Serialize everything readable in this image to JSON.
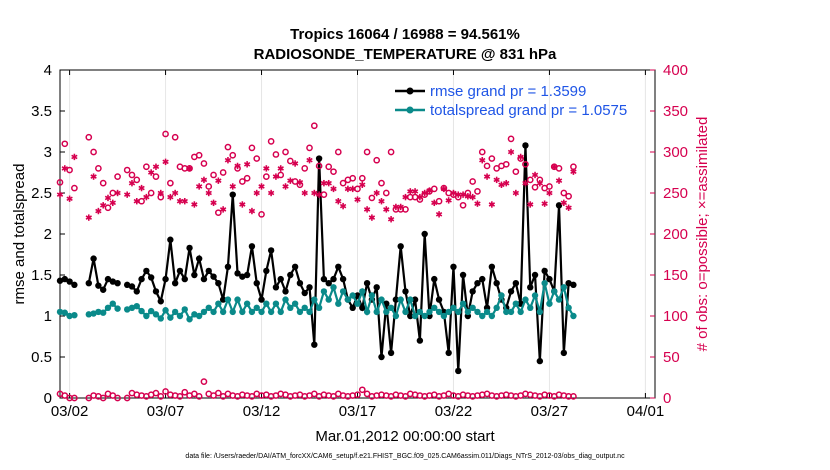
{
  "chart_data": {
    "type": "line",
    "title_line1": "Tropics 16064 / 16988 = 94.561%",
    "title_line2": "RADIOSONDE_TEMPERATURE @ 831 hPa",
    "xlabel": "Mar.01,2012 00:00:00 start",
    "ylabel": "rmse and totalspread",
    "ylabel_right": "# of obs: o=possible; ×=assimilated",
    "footer": "data file: /Users/raeder/DAI/ATM_forcXX/CAM6_setup/f.e21.FHIST_BGC.f09_025.CAM6assim.011/Diags_NTrS_2012-03/obs_diag_output.nc",
    "xlim": [
      1.5,
      32.5
    ],
    "ylim": [
      0,
      4
    ],
    "ylim_right": [
      0,
      400
    ],
    "x_ticks": [
      2,
      7,
      12,
      17,
      22,
      27,
      32
    ],
    "x_tick_labels": [
      "03/02",
      "03/07",
      "03/12",
      "03/17",
      "03/22",
      "03/27",
      "04/01"
    ],
    "y_tick_labels": [
      "0",
      "0.5",
      "1",
      "1.5",
      "2",
      "2.5",
      "3",
      "3.5",
      "4"
    ],
    "y_tick_values": [
      0,
      0.5,
      1,
      1.5,
      2,
      2.5,
      3,
      3.5,
      4
    ],
    "y_right_tick_labels": [
      "0",
      "50",
      "100",
      "150",
      "200",
      "250",
      "300",
      "350",
      "400"
    ],
    "y_right_tick_values": [
      0,
      50,
      100,
      150,
      200,
      250,
      300,
      350,
      400
    ],
    "x_start": 1.5,
    "x_step": 0.25,
    "series": [
      {
        "name": "rmse",
        "legend": "rmse grand pr = 1.3599",
        "color": "#000000",
        "axis": "left",
        "values": [
          1.43,
          1.45,
          1.42,
          1.38,
          null,
          null,
          1.4,
          1.7,
          1.37,
          1.32,
          1.45,
          1.42,
          1.4,
          null,
          1.38,
          1.36,
          1.3,
          1.45,
          1.55,
          1.47,
          1.3,
          1.18,
          1.45,
          1.93,
          1.4,
          1.55,
          1.45,
          1.83,
          1.5,
          1.7,
          1.45,
          1.55,
          1.48,
          1.4,
          1.2,
          1.6,
          2.48,
          1.52,
          1.48,
          1.5,
          1.85,
          1.4,
          1.2,
          1.55,
          1.8,
          1.35,
          1.45,
          1.3,
          1.5,
          1.6,
          1.4,
          1.28,
          1.35,
          0.65,
          2.92,
          1.45,
          1.4,
          1.45,
          1.6,
          1.45,
          1.2,
          1.1,
          1.25,
          1.1,
          1.4,
          1.2,
          1.35,
          0.5,
          1.15,
          0.55,
          1.2,
          1.85,
          1.3,
          1.0,
          1.2,
          0.7,
          2.0,
          1.0,
          1.45,
          1.2,
          1.05,
          0.55,
          1.6,
          0.33,
          1.5,
          1.0,
          1.3,
          1.4,
          1.45,
          1.1,
          1.6,
          1.4,
          1.2,
          1.1,
          1.3,
          1.4,
          1.15,
          3.08,
          1.35,
          1.5,
          0.45,
          1.55,
          1.45,
          1.3,
          2.35,
          0.55,
          1.4,
          1.38
        ],
        "marker": "circle"
      },
      {
        "name": "totalspread",
        "legend": "totalspread grand pr = 1.0575",
        "color": "#0a8a8a",
        "axis": "left",
        "values": [
          1.05,
          1.04,
          1.0,
          1.01,
          null,
          null,
          1.02,
          1.03,
          1.05,
          1.04,
          1.1,
          1.15,
          1.09,
          null,
          1.08,
          1.1,
          1.12,
          1.06,
          1.0,
          1.06,
          1.02,
          0.97,
          1.07,
          0.98,
          1.05,
          1.0,
          1.08,
          0.96,
          1.02,
          1.0,
          1.05,
          1.1,
          1.05,
          1.15,
          1.05,
          1.2,
          1.05,
          1.2,
          1.05,
          1.15,
          1.05,
          1.1,
          1.05,
          1.15,
          1.05,
          1.15,
          1.05,
          1.2,
          1.1,
          1.15,
          1.05,
          1.1,
          1.05,
          1.2,
          1.1,
          1.3,
          1.2,
          1.35,
          1.15,
          1.3,
          1.2,
          1.25,
          1.15,
          1.3,
          1.05,
          1.25,
          1.05,
          1.2,
          1.05,
          1.1,
          1.0,
          1.2,
          1.05,
          1.2,
          1.0,
          1.05,
          1.0,
          1.05,
          1.1,
          1.05,
          1.0,
          1.05,
          1.1,
          1.05,
          1.15,
          1.05,
          1.1,
          1.05,
          1.0,
          1.05,
          1.0,
          1.1,
          1.25,
          1.05,
          1.05,
          1.15,
          1.05,
          1.2,
          1.1,
          1.25,
          1.05,
          1.4,
          1.15,
          1.3,
          1.2,
          1.35,
          1.1,
          1.0
        ],
        "marker": "circle"
      },
      {
        "name": "possible",
        "color": "#d6004f",
        "axis": "right",
        "marker": "open-circle",
        "values": [
          263,
          310,
          278,
          256,
          null,
          null,
          318,
          300,
          280,
          262,
          232,
          250,
          270,
          null,
          278,
          272,
          266,
          240,
          282,
          250,
          270,
          245,
          322,
          262,
          318,
          282,
          280,
          280,
          294,
          296,
          286,
          258,
          272,
          226,
          275,
          306,
          296,
          280,
          264,
          268,
          305,
          292,
          224,
          270,
          313,
          297,
          272,
          300,
          289,
          264,
          260,
          280,
          305,
          332,
          283,
          248,
          282,
          276,
          300,
          262,
          266,
          268,
          255,
          268,
          300,
          244,
          290,
          262,
          250,
          300,
          230,
          230,
          230,
          245,
          245,
          242,
          248,
          252,
          255,
          240,
          256,
          250,
          248,
          245,
          235,
          250,
          264,
          252,
          300,
          283,
          292,
          280,
          283,
          285,
          316,
          276,
          292,
          285,
          266,
          257,
          266,
          256,
          258,
          282,
          280,
          250,
          246,
          282
        ],
        "marker_style": "open"
      },
      {
        "name": "assimilated",
        "color": "#d6004f",
        "axis": "right",
        "marker": "asterisk",
        "values": [
          248,
          280,
          243,
          294,
          null,
          null,
          220,
          270,
          228,
          235,
          244,
          238,
          250,
          null,
          248,
          262,
          240,
          256,
          245,
          275,
          282,
          250,
          288,
          245,
          250,
          240,
          240,
          280,
          236,
          258,
          266,
          250,
          238,
          265,
          230,
          290,
          258,
          283,
          236,
          285,
          228,
          250,
          258,
          280,
          250,
          270,
          280,
          258,
          265,
          286,
          263,
          250,
          290,
          250,
          248,
          262,
          262,
          255,
          240,
          234,
          255,
          255,
          242,
          260,
          230,
          220,
          250,
          240,
          230,
          218,
          233,
          233,
          245,
          252,
          252,
          245,
          250,
          253,
          238,
          224,
          255,
          241,
          250,
          248,
          248,
          246,
          245,
          237,
          290,
          270,
          236,
          266,
          260,
          262,
          300,
          250,
          294,
          262,
          236,
          272,
          262,
          237,
          250,
          282,
          265,
          238,
          232,
          276
        ],
        "marker_style": "asterisk"
      },
      {
        "name": "possible_low",
        "color": "#d6004f",
        "axis": "right",
        "marker": "open-circle",
        "values": [
          5,
          3,
          0,
          0,
          null,
          null,
          0,
          3,
          2,
          0,
          5,
          3,
          0,
          null,
          0,
          6,
          4,
          3,
          2,
          4,
          6,
          2,
          8,
          4,
          3,
          2,
          7,
          3,
          5,
          2,
          20,
          5,
          3,
          6,
          2,
          5,
          3,
          2,
          4,
          3,
          2,
          5,
          3,
          4,
          2,
          3,
          5,
          4,
          2,
          3,
          4,
          2,
          3,
          5,
          2,
          4,
          3,
          2,
          5,
          3,
          2,
          3,
          4,
          10,
          5,
          2,
          3,
          4,
          3,
          2,
          4,
          3,
          2,
          5,
          4,
          3,
          2,
          3,
          4,
          2,
          3,
          5,
          3,
          2,
          4,
          3,
          2,
          3,
          4,
          5,
          3,
          2,
          3,
          4,
          3,
          2,
          3,
          5,
          4,
          3,
          2,
          4,
          3,
          2,
          4,
          3,
          2,
          2
        ]
      }
    ]
  },
  "legend": {
    "rmse": "rmse grand pr = 1.3599",
    "totalspread": "totalspread grand pr = 1.0575"
  }
}
